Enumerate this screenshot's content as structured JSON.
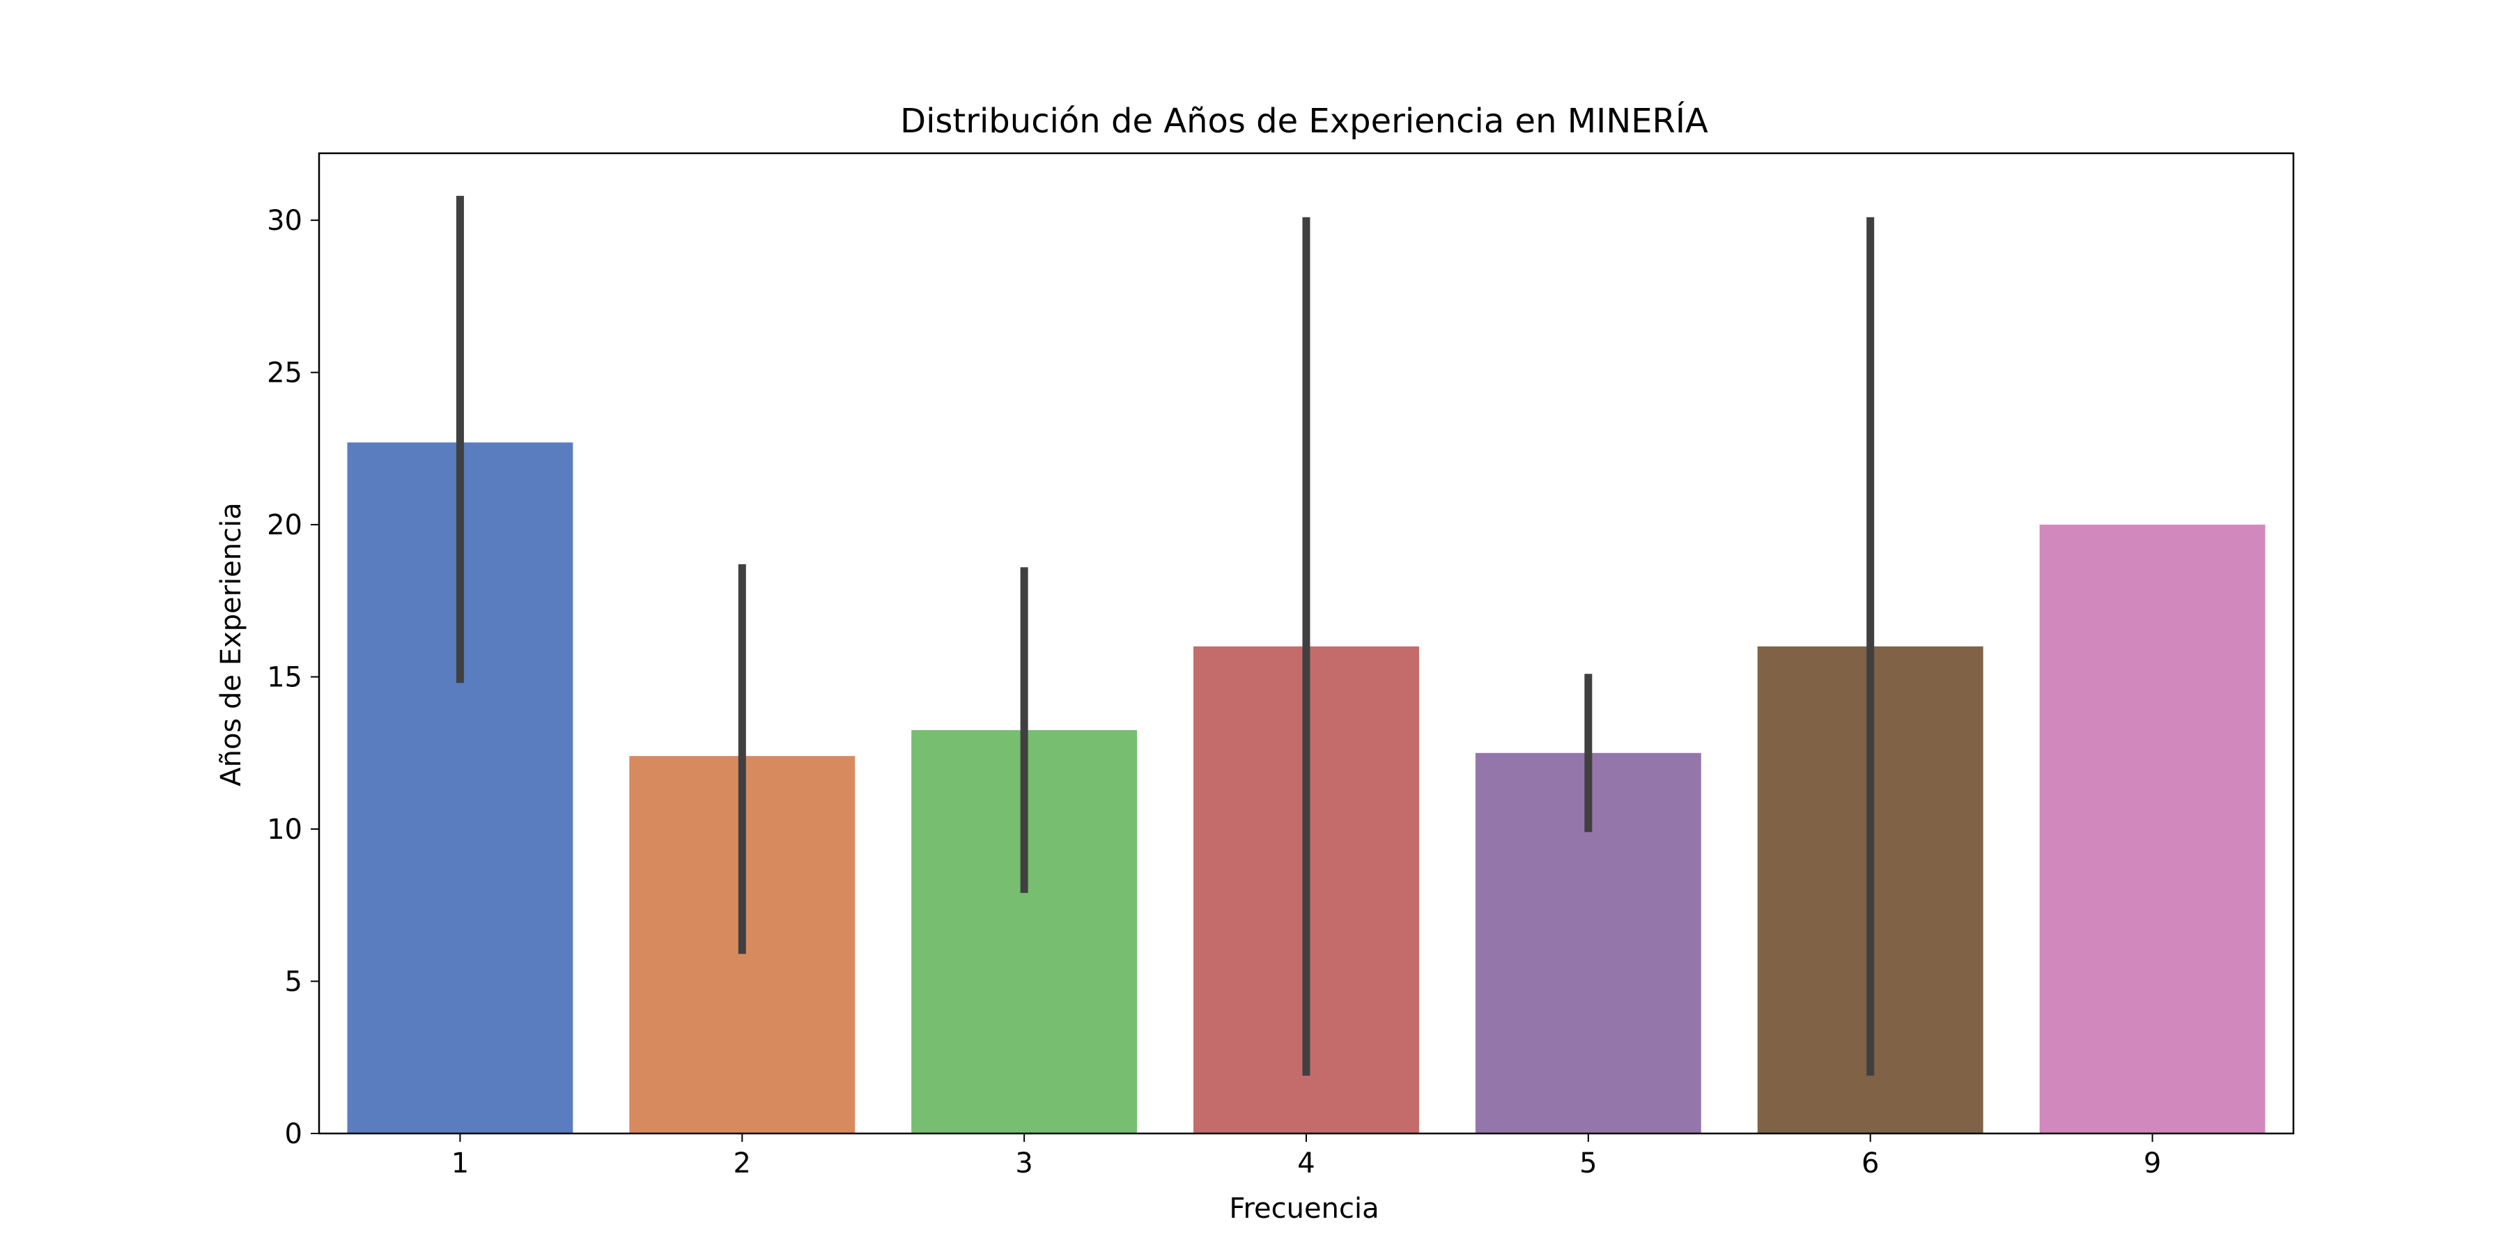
{
  "chart_data": {
    "type": "bar",
    "title": "Distribución de Años de Experiencia en MINERÍA",
    "xlabel": "Frecuencia",
    "ylabel": "Años de Experiencia",
    "categories": [
      "1",
      "2",
      "3",
      "4",
      "5",
      "6",
      "9"
    ],
    "values": [
      22.7,
      12.4,
      13.25,
      16.0,
      12.5,
      16.0,
      20.0
    ],
    "error_bars": [
      [
        14.8,
        30.8
      ],
      [
        5.9,
        18.7
      ],
      [
        7.9,
        18.6
      ],
      [
        1.9,
        30.1
      ],
      [
        9.9,
        15.1
      ],
      [
        1.9,
        30.1
      ],
      null
    ],
    "colors": [
      "#5a7dbf",
      "#d88a5f",
      "#77be71",
      "#c46c6b",
      "#9476ab",
      "#806246",
      "#d188bc"
    ],
    "error_color": "#404040",
    "ylim": [
      0,
      32.2
    ],
    "yticks": [
      0,
      5,
      10,
      15,
      20,
      25,
      30
    ],
    "grid": false,
    "legend": "none"
  }
}
